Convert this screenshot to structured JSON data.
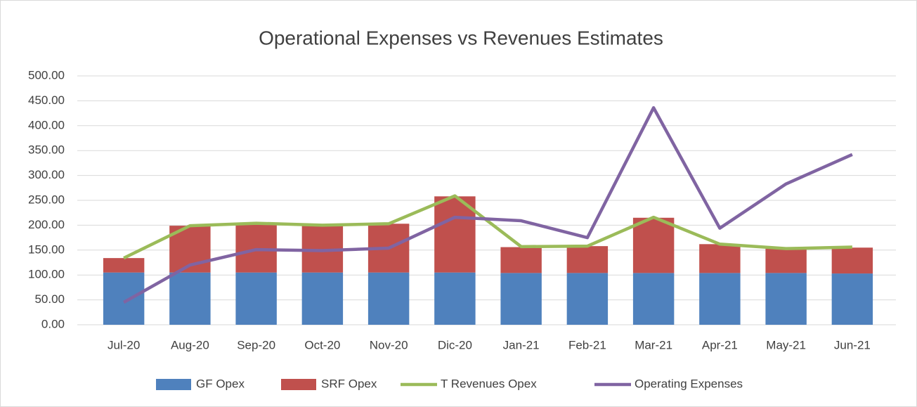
{
  "chart_data": {
    "type": "bar_line",
    "title": "Operational Expenses vs Revenues Estimates",
    "categories": [
      "Jul-20",
      "Aug-20",
      "Sep-20",
      "Oct-20",
      "Nov-20",
      "Dic-20",
      "Jan-21",
      "Feb-21",
      "Mar-21",
      "Apr-21",
      "May-21",
      "Jun-21"
    ],
    "series": [
      {
        "name": "GF Opex",
        "type": "bar",
        "color": "#4f81bd",
        "values": [
          105,
          105,
          105,
          105,
          105,
          105,
          104,
          104,
          104,
          104,
          104,
          103
        ]
      },
      {
        "name": "SRF Opex",
        "type": "bar",
        "color": "#c0504d",
        "values": [
          29,
          94,
          98,
          94,
          98,
          153,
          52,
          54,
          111,
          58,
          49,
          52
        ]
      },
      {
        "name": "T Revenues Opex",
        "type": "line",
        "color": "#9bbb59",
        "values": [
          134,
          199,
          204,
          200,
          203,
          259,
          157,
          158,
          216,
          162,
          153,
          156
        ]
      },
      {
        "name": "Operating Expenses",
        "type": "line",
        "color": "#8064a2",
        "values": [
          45,
          120,
          151,
          149,
          154,
          216,
          209,
          175,
          436,
          194,
          283,
          342
        ]
      }
    ],
    "ylim": [
      0,
      500
    ],
    "yticks": [
      {
        "value": 0,
        "label": "0.00"
      },
      {
        "value": 50,
        "label": "50.00"
      },
      {
        "value": 100,
        "label": "100.00"
      },
      {
        "value": 150,
        "label": "150.00"
      },
      {
        "value": 200,
        "label": "200.00"
      },
      {
        "value": 250,
        "label": "250.00"
      },
      {
        "value": 300,
        "label": "300.00"
      },
      {
        "value": 350,
        "label": "350.00"
      },
      {
        "value": 400,
        "label": "400.00"
      },
      {
        "value": 450,
        "label": "450.00"
      },
      {
        "value": 500,
        "label": "500.00"
      }
    ],
    "grid": true,
    "legend": "bottom"
  }
}
